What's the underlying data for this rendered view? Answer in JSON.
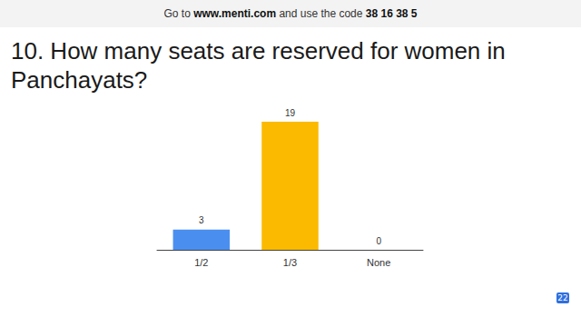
{
  "header": {
    "prefix": "Go to",
    "url": "www.menti.com",
    "middle": "and use the code",
    "code": "38 16 38 5"
  },
  "participants": "22",
  "chart_data": {
    "type": "bar",
    "title": "10. How many seats are reserved for women in Panchayats?",
    "categories": [
      "1/2",
      "1/3",
      "None"
    ],
    "values": [
      3,
      19,
      0
    ],
    "colors": [
      "#4a8ff0",
      "#fbba00",
      "#f0709a"
    ],
    "ylim": [
      0,
      19
    ],
    "grid": false,
    "data_labels": true,
    "tick_labels": "x"
  }
}
